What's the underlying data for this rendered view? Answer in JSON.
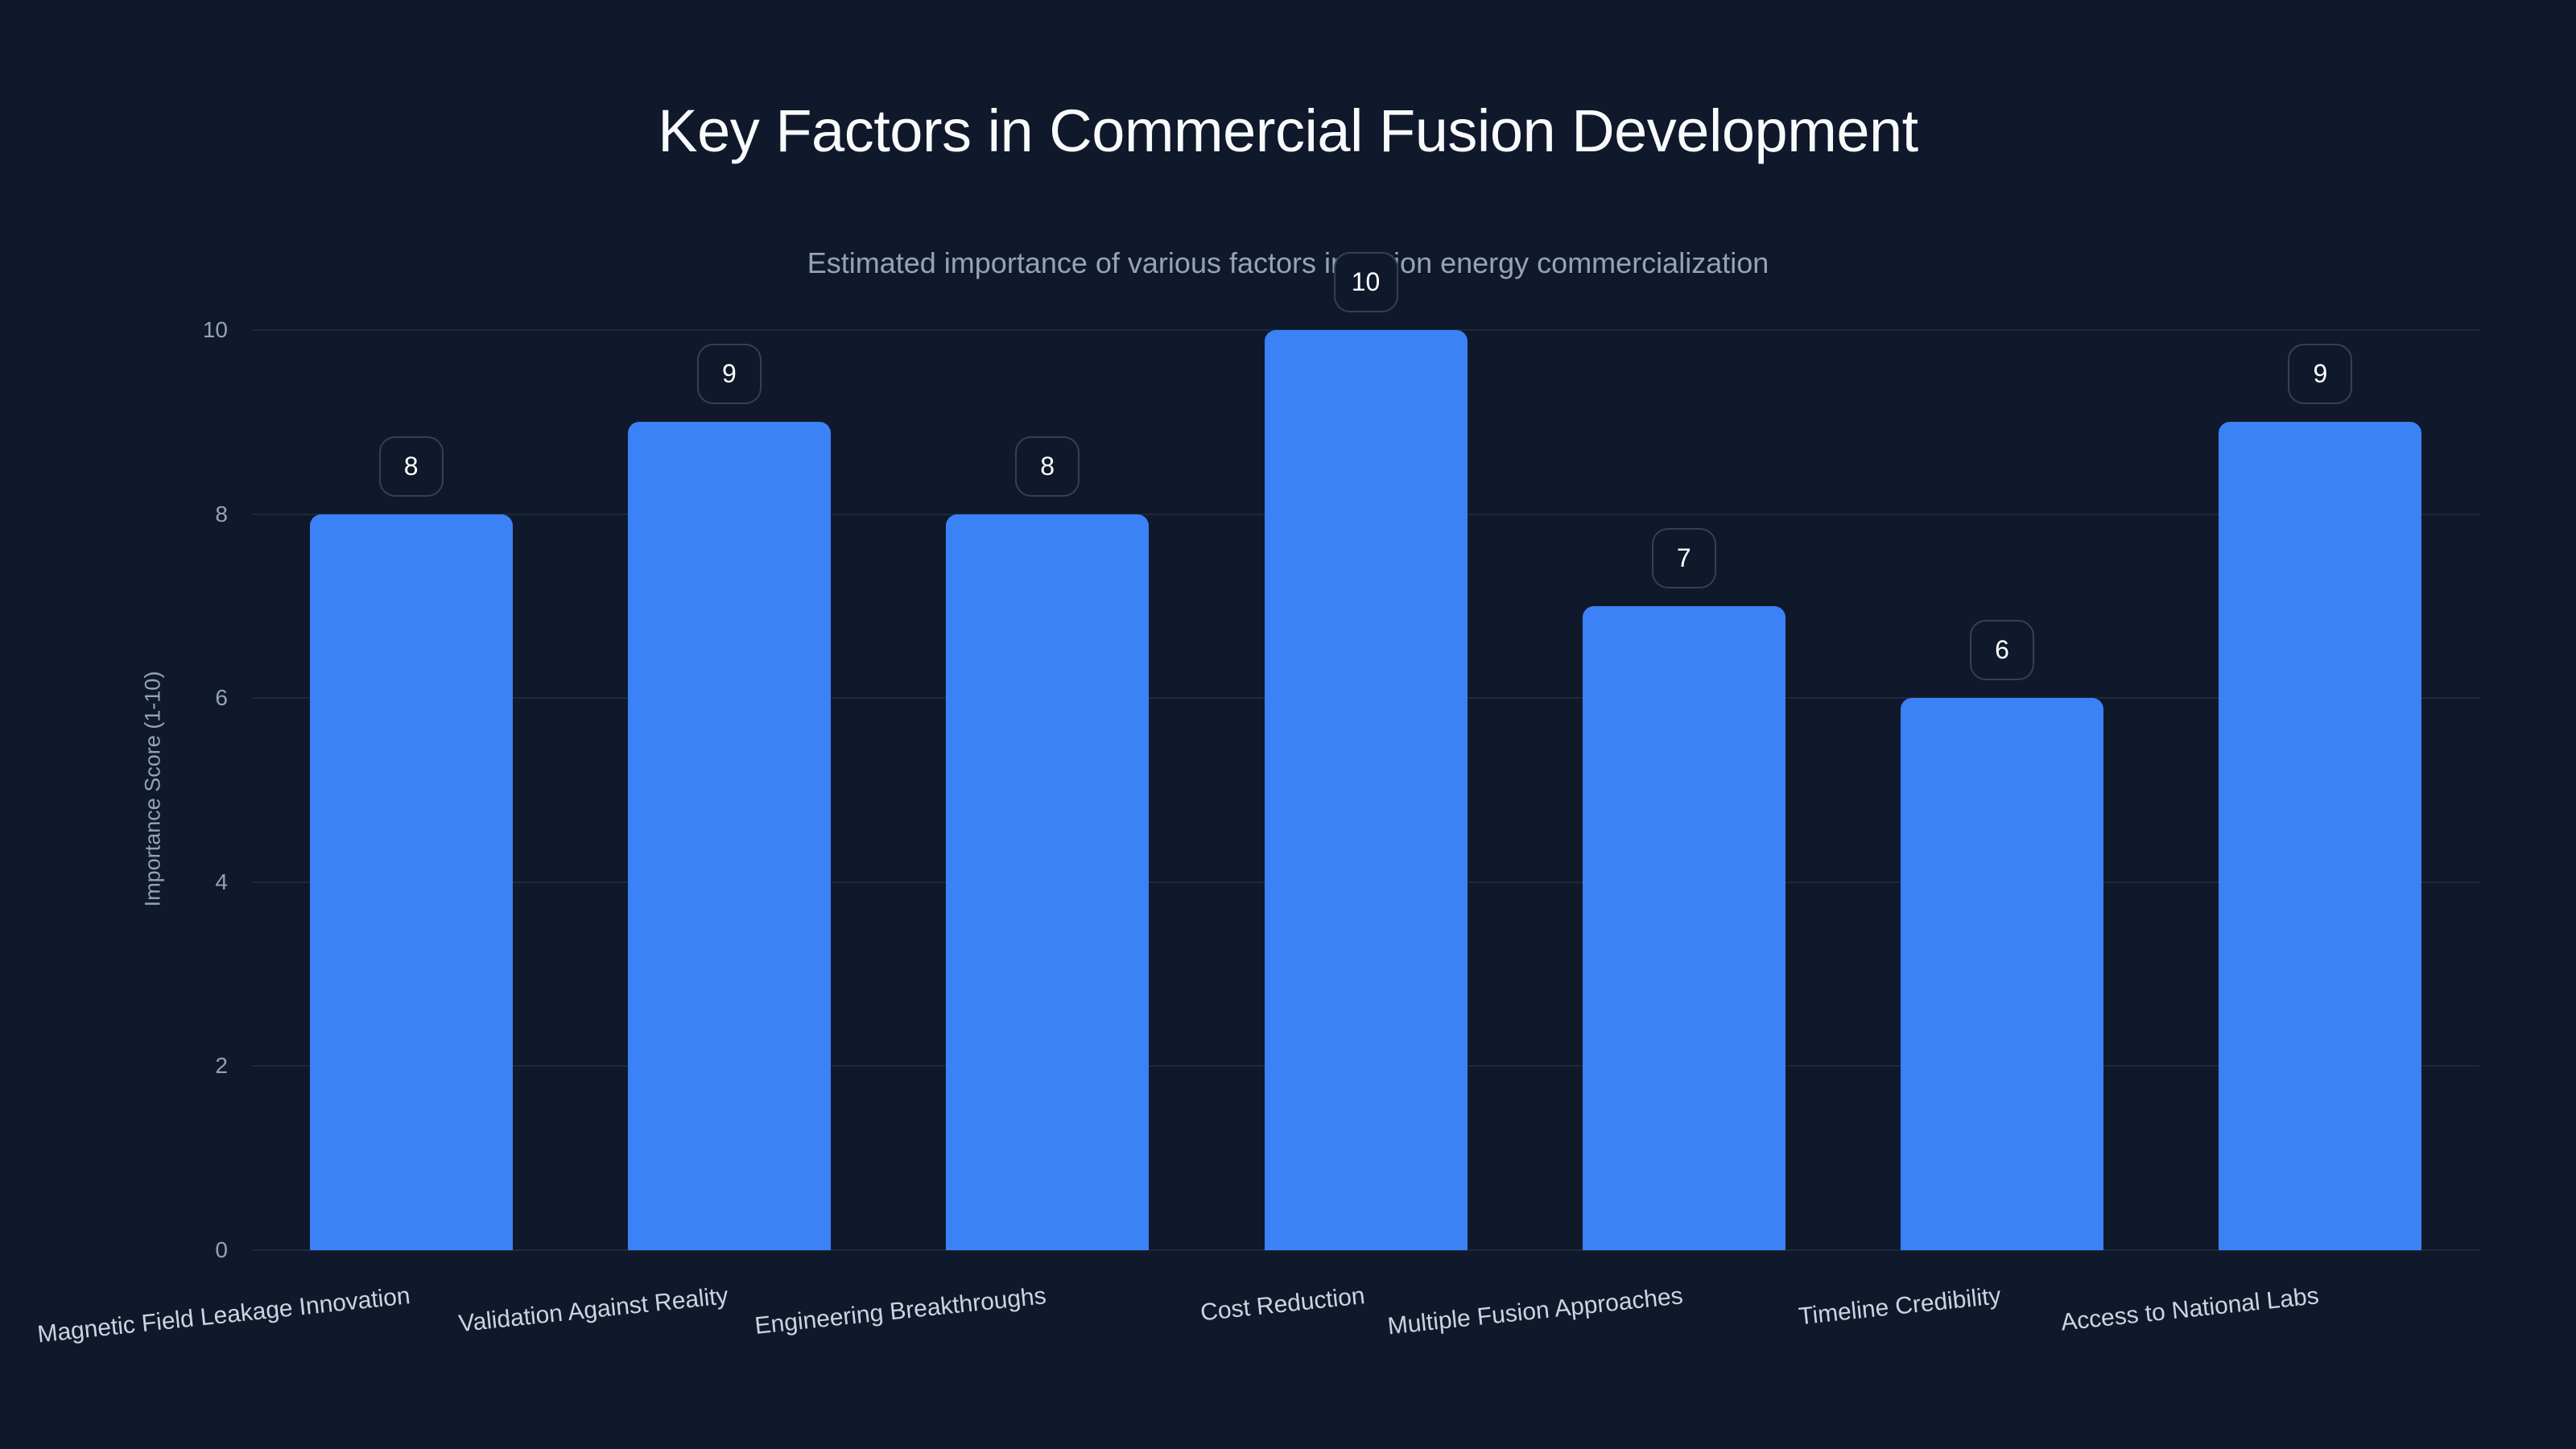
{
  "title": "Key Factors in Commercial Fusion Development",
  "subtitle": "Estimated importance of various factors in fusion energy commercialization",
  "colors": {
    "background": "#10192b",
    "bar": "#3b82f6",
    "gridline": "#1e293b",
    "bubble_border": "#334155",
    "title": "#f8fafc",
    "subtitle": "#94a3b8",
    "tick": "#94a3b8",
    "xlabel": "#cbd5e1"
  },
  "y_axis": {
    "label": "Importance Score (1-10)",
    "ticks": [
      "0",
      "2",
      "4",
      "6",
      "8",
      "10"
    ]
  },
  "chart_data": {
    "type": "bar",
    "title": "Key Factors in Commercial Fusion Development",
    "subtitle": "Estimated importance of various factors in fusion energy commercialization",
    "xlabel": "",
    "ylabel": "Importance Score (1-10)",
    "ylim": [
      0,
      10
    ],
    "yticks": [
      0,
      2,
      4,
      6,
      8,
      10
    ],
    "grid": true,
    "legend": null,
    "categories": [
      "Magnetic Field Leakage Innovation",
      "Validation Against Reality",
      "Engineering Breakthroughs",
      "Cost Reduction",
      "Multiple Fusion Approaches",
      "Timeline Credibility",
      "Access to National Labs"
    ],
    "values": [
      8,
      9,
      8,
      10,
      7,
      6,
      9
    ],
    "data_labels": [
      "8",
      "9",
      "8",
      "10",
      "7",
      "6",
      "9"
    ]
  }
}
